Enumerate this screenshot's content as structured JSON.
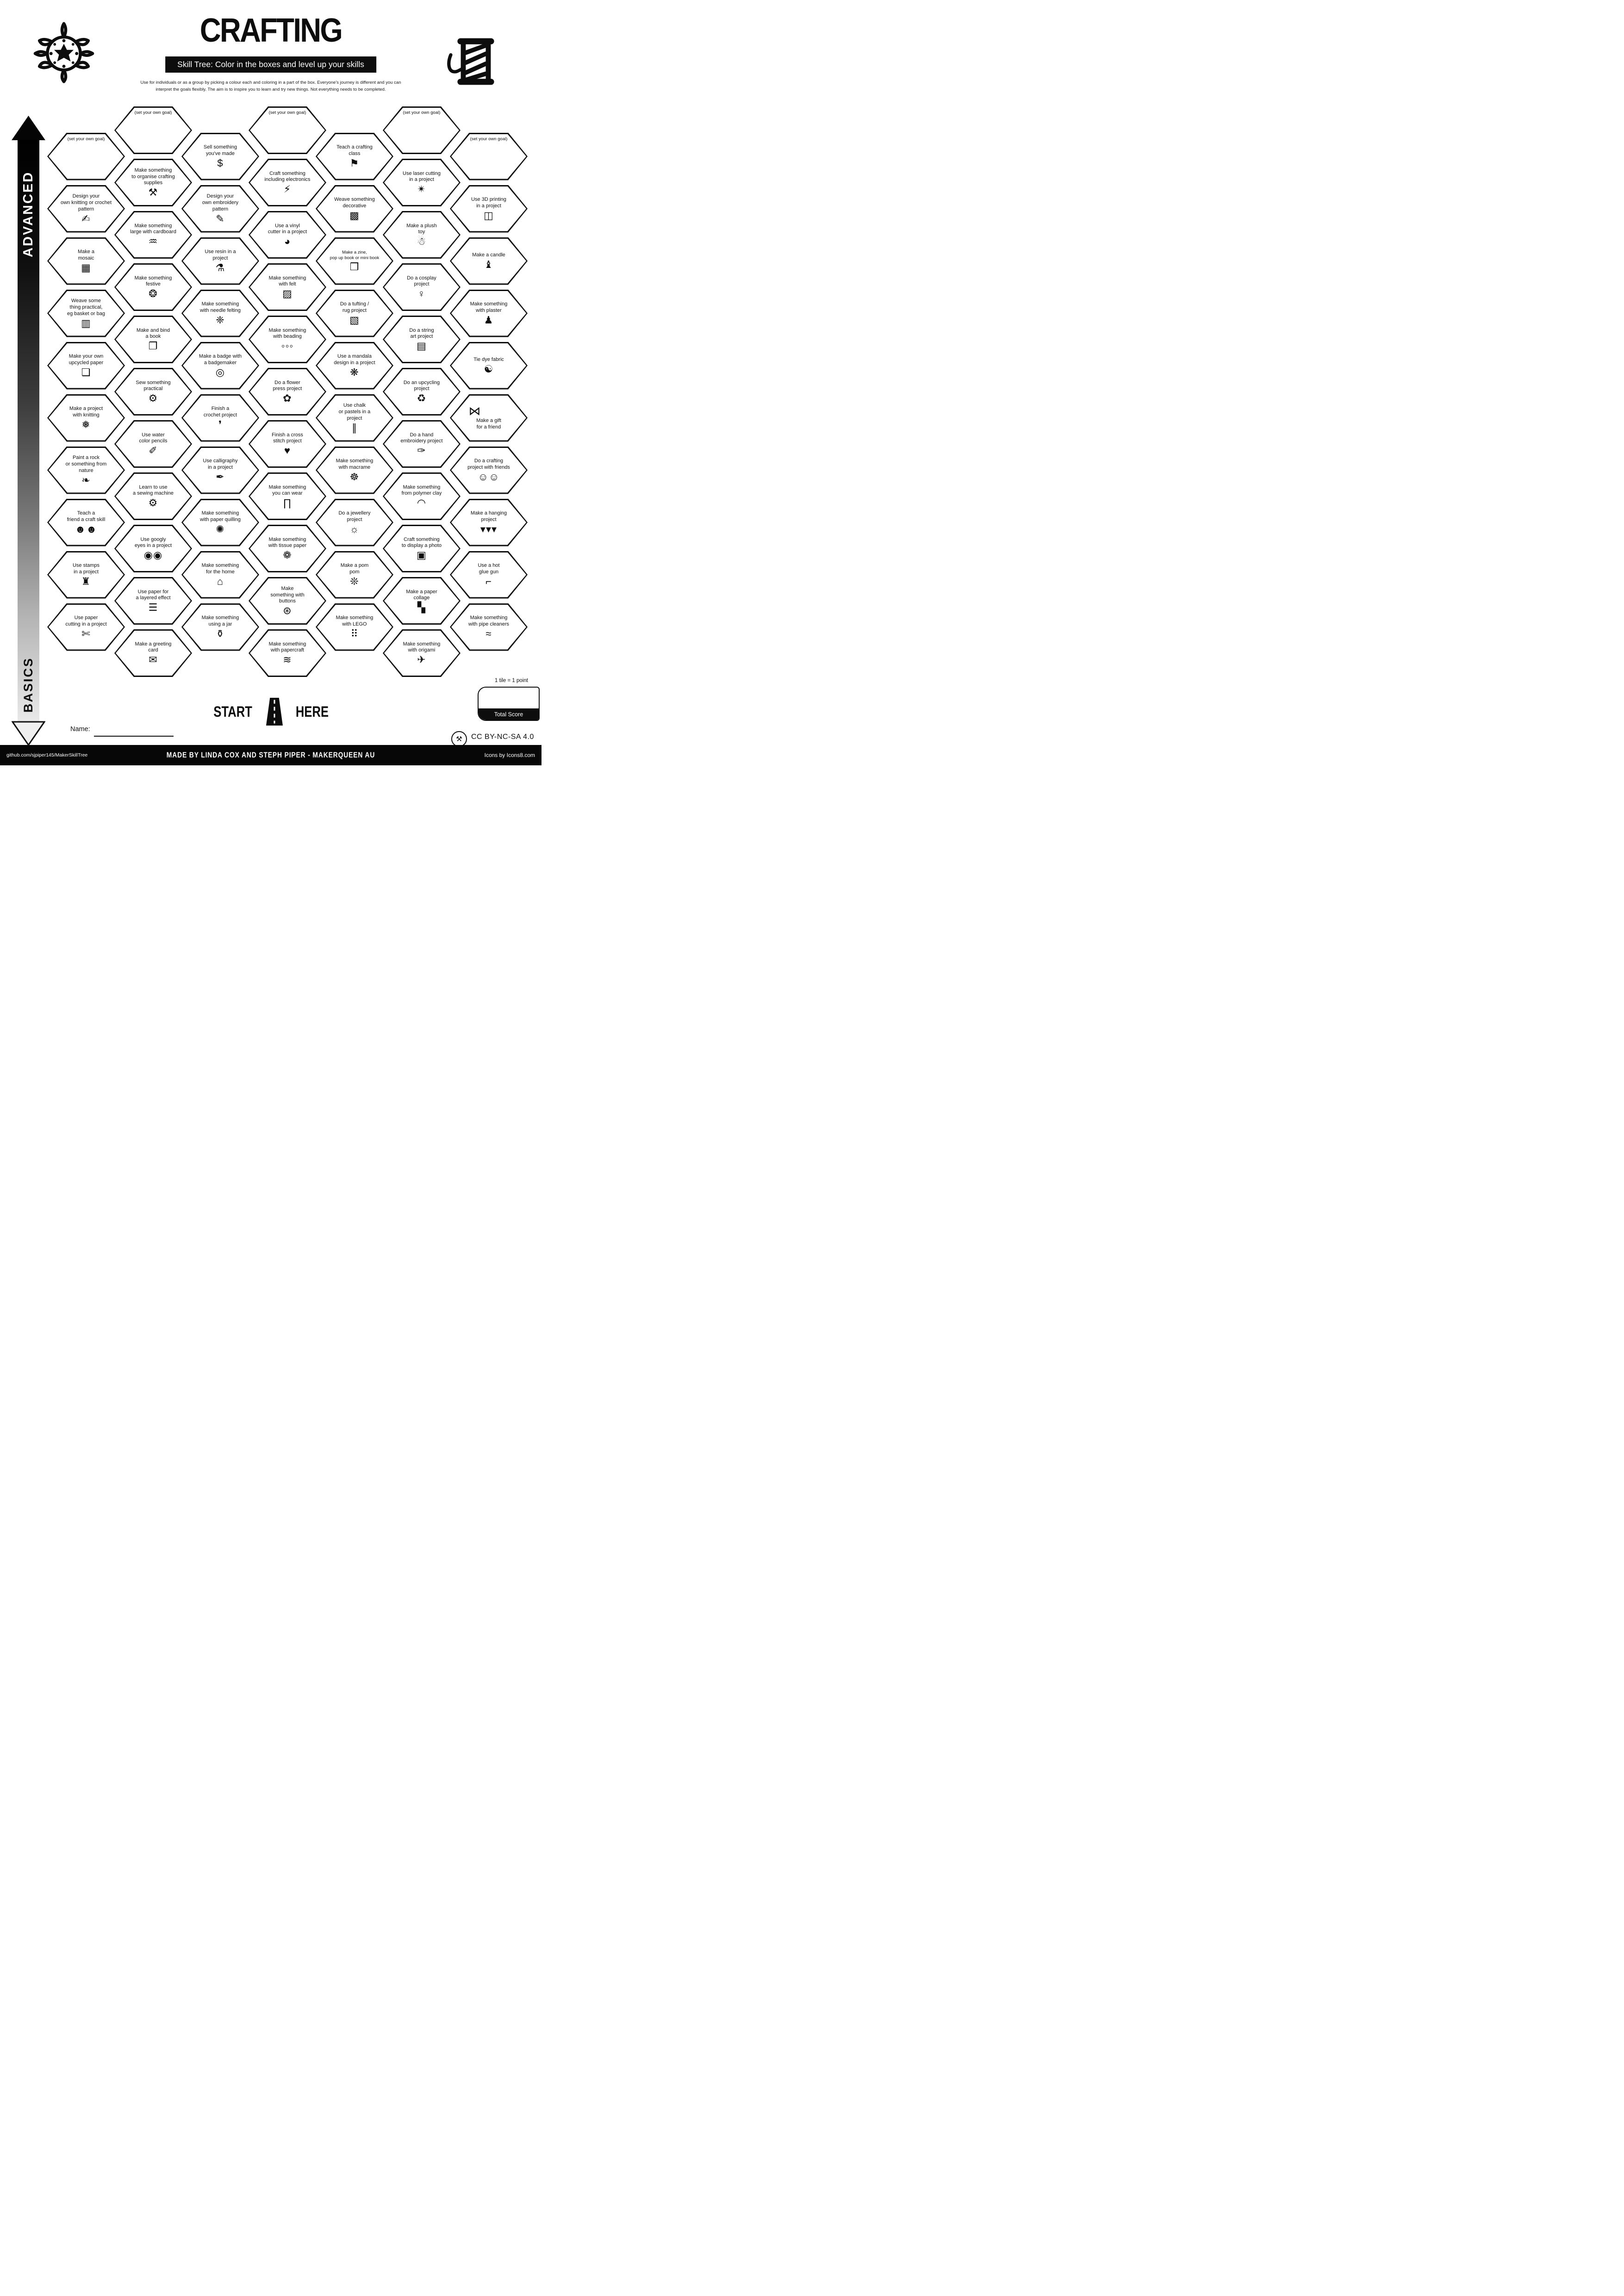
{
  "header": {
    "title": "CRAFTING",
    "subtitle": "Skill Tree:  Color in the boxes and level up your skills",
    "description": "Use for individuals or as a group by picking a colour each and coloring in a part of the box.  Everyone's journey is different and you can\ninterpret the goals flexibly.  The aim is to inspire you to learn and try new things. Not everything needs to be completed.",
    "left_logo_icon": "mandala-logo-icon",
    "right_logo_icon": "thread-spool-logo-icon"
  },
  "axis": {
    "top_label": "ADVANCED",
    "bottom_label": "BASICS"
  },
  "grid": {
    "columns": [
      {
        "hexes": [
          {
            "goal": true,
            "label": "(set your own goal)",
            "glyph": ""
          },
          {
            "label": "Design your\nown knitting or crochet\npattern",
            "icon": "pattern-pencil-icon",
            "glyph": "✍"
          },
          {
            "label": "Make a\nmosaic",
            "icon": "mosaic-icon",
            "glyph": "▦"
          },
          {
            "label": "Weave some\nthing practical,\neg basket or bag",
            "icon": "bag-icon",
            "glyph": "▥"
          },
          {
            "label": "Make your own\nupcycled paper",
            "icon": "paper-scroll-icon",
            "glyph": "❏"
          },
          {
            "label": "Make a project\nwith knitting",
            "icon": "knitting-icon",
            "glyph": "❅"
          },
          {
            "label": "Paint a rock\nor something from\nnature",
            "icon": "leaf-icon",
            "glyph": "❧"
          },
          {
            "label": "Teach a\nfriend a craft skill",
            "icon": "two-friends-icon",
            "glyph": "☻☻"
          },
          {
            "label": "Use stamps\nin a project",
            "icon": "stamp-icon",
            "glyph": "♜"
          },
          {
            "label": "Use paper\ncutting in a project",
            "icon": "cutter-knife-icon",
            "glyph": "✄"
          }
        ]
      },
      {
        "hexes": [
          {
            "goal": true,
            "label": "(set your own goal)",
            "glyph": ""
          },
          {
            "label": "Make something\nto organise crafting\nsupplies",
            "icon": "person-organising-icon",
            "glyph": "⚒"
          },
          {
            "label": "Make something\nlarge with cardboard",
            "icon": "cardboard-icon",
            "glyph": "♒"
          },
          {
            "label": "Make something\nfestive",
            "icon": "bauble-icon",
            "glyph": "❂"
          },
          {
            "label": "Make and bind\na book",
            "icon": "book-icon",
            "glyph": "❐"
          },
          {
            "label": "Sew something\npractical",
            "icon": "sewing-machine-icon",
            "glyph": "⚙"
          },
          {
            "label": "Use water\ncolor pencils",
            "icon": "brush-stroke-icon",
            "glyph": "✐"
          },
          {
            "label": "Learn to use\na sewing machine",
            "icon": "sewing-machine-icon",
            "glyph": "⚙"
          },
          {
            "label": "Use googly\neyes in a project",
            "icon": "googly-eyes-icon",
            "glyph": "◉◉"
          },
          {
            "label": "Use paper for\na layered effect",
            "icon": "layered-paper-icon",
            "glyph": "☰"
          },
          {
            "label": "Make a greeting\ncard",
            "icon": "greeting-card-icon",
            "glyph": "✉"
          }
        ]
      },
      {
        "hexes": [
          {
            "label": "Sell something\nyou've made",
            "icon": "money-bag-icon",
            "glyph": "$"
          },
          {
            "label": "Design your\nown embroidery\npattern",
            "icon": "embroidery-pattern-icon",
            "glyph": "✎"
          },
          {
            "label": "Use resin in a\nproject",
            "icon": "resin-can-icon",
            "glyph": "⚗"
          },
          {
            "label": "Make something\nwith needle felting",
            "icon": "felted-teddy-icon",
            "glyph": "❈"
          },
          {
            "label": "Make a badge with\na badgemaker",
            "icon": "badge-icon",
            "glyph": "◎"
          },
          {
            "label": "Finish a\ncrochet project",
            "icon": "crochet-hook-icon",
            "glyph": "❜"
          },
          {
            "label": "Use calligraphy\nin a project",
            "icon": "calligraphy-pen-icon",
            "glyph": "✒"
          },
          {
            "label": "Make something\nwith paper quilling",
            "icon": "quilling-spiral-icon",
            "glyph": "✺"
          },
          {
            "label": "Make something\nfor the home",
            "icon": "house-icon",
            "glyph": "⌂"
          },
          {
            "label": "Make something\nusing a jar",
            "icon": "jar-icon",
            "glyph": "⚱"
          }
        ]
      },
      {
        "hexes": [
          {
            "goal": true,
            "label": "(set your own goal)",
            "glyph": ""
          },
          {
            "label": "Craft something\nincluding electronics",
            "icon": "led-electronics-icon",
            "glyph": "⚡"
          },
          {
            "label": "Use a vinyl\ncutter in a project",
            "icon": "vinyl-cutter-icon",
            "glyph": "◕"
          },
          {
            "label": "Make something\nwith felt",
            "icon": "felt-sheets-icon",
            "glyph": "▨"
          },
          {
            "label": "Make something\nwith beading",
            "icon": "bead-necklace-icon",
            "glyph": "◦◦◦"
          },
          {
            "label": "Do a flower\npress project",
            "icon": "flower-icon",
            "glyph": "✿"
          },
          {
            "label": "Finish a cross\nstitch project",
            "icon": "cross-stitch-heart-icon",
            "glyph": "♥"
          },
          {
            "label": "Make something\nyou can wear",
            "icon": "pants-icon",
            "glyph": "∏"
          },
          {
            "label": "Make something\nwith tissue paper",
            "icon": "lotus-tissue-icon",
            "glyph": "❁"
          },
          {
            "label": "Make\nsomething with\nbuttons",
            "icon": "button-icon",
            "glyph": "⊛"
          },
          {
            "label": "Make something\nwith papercraft",
            "icon": "papercraft-stack-icon",
            "glyph": "≋"
          }
        ]
      },
      {
        "hexes": [
          {
            "label": "Teach a crafting\nclass",
            "icon": "presenter-icon",
            "glyph": "⚑"
          },
          {
            "label": "Weave something\ndecorative",
            "icon": "woven-square-icon",
            "glyph": "▩"
          },
          {
            "small": true,
            "label": "Make a zine,\npop up book or mini book",
            "icon": "zine-book-icon",
            "glyph": "❒"
          },
          {
            "label": "Do a tufting /\nrug project",
            "icon": "rug-icon",
            "glyph": "▧"
          },
          {
            "label": "Use a mandala\ndesign in a project",
            "icon": "mandala-icon",
            "glyph": "❋"
          },
          {
            "label": "Use chalk\nor pastels in a\nproject",
            "icon": "chalk-sticks-icon",
            "glyph": "∥"
          },
          {
            "label": "Make something\nwith macrame",
            "icon": "dreamcatcher-icon",
            "glyph": "☸"
          },
          {
            "label": "Do a jewellery\nproject",
            "icon": "necklace-rays-icon",
            "glyph": "☼"
          },
          {
            "label": "Make a pom\npom",
            "icon": "pom-pom-icon",
            "glyph": "❊"
          },
          {
            "label": "Make something\nwith LEGO",
            "icon": "lego-brick-icon",
            "glyph": "⠿"
          }
        ]
      },
      {
        "hexes": [
          {
            "goal": true,
            "label": "(set your own goal)",
            "glyph": ""
          },
          {
            "label": "Use laser cutting\nin a project",
            "icon": "laser-beam-icon",
            "glyph": "✴"
          },
          {
            "label": "Make a plush\ntoy",
            "icon": "teddy-bear-icon",
            "glyph": "☃"
          },
          {
            "label": "Do a cosplay\nproject",
            "icon": "dress-form-icon",
            "glyph": "♀"
          },
          {
            "label": "Do a string\nart project",
            "icon": "thread-spool-icon",
            "glyph": "▤"
          },
          {
            "label": "Do an upcycling\nproject",
            "icon": "recycle-icon",
            "glyph": "♻"
          },
          {
            "label": "Do a hand\nembroidery project",
            "icon": "needle-icon",
            "glyph": "✑"
          },
          {
            "label": "Make something\nfrom polymer clay",
            "icon": "rainbow-icon",
            "glyph": "◠"
          },
          {
            "label": "Craft something\nto display a photo",
            "icon": "photo-frame-icon",
            "glyph": "▣"
          },
          {
            "label": "Make a paper\ncollage",
            "icon": "collage-icon",
            "glyph": "▚"
          },
          {
            "label": "Make something\nwith origami",
            "icon": "origami-crane-icon",
            "glyph": "✈"
          }
        ]
      },
      {
        "hexes": [
          {
            "goal": true,
            "label": "(set your own goal)",
            "glyph": ""
          },
          {
            "label": "Use 3D printing\nin a project",
            "icon": "printer-3d-icon",
            "glyph": "◫"
          },
          {
            "label": "Make a candle",
            "icon": "candle-icon",
            "glyph": "♝"
          },
          {
            "label": "Make something\nwith plaster",
            "icon": "plaster-bust-icon",
            "glyph": "♟"
          },
          {
            "label": "Tie dye fabric",
            "icon": "tie-dye-swirl-icon",
            "glyph": "☯"
          },
          {
            "icon_above": true,
            "label": "Make a gift\nfor a friend",
            "icon": "gift-bow-icon",
            "glyph": "⋈"
          },
          {
            "label": "Do a crafting\nproject with friends",
            "icon": "friends-crafting-icon",
            "glyph": "☺☺"
          },
          {
            "label": "Make a hanging\nproject",
            "icon": "bunting-icon",
            "glyph": "▾▾▾"
          },
          {
            "label": "Use a hot\nglue gun",
            "icon": "glue-gun-icon",
            "glyph": "⌐"
          },
          {
            "label": "Make something\nwith pipe cleaners",
            "icon": "pipe-cleaner-icon",
            "glyph": "≈"
          }
        ]
      }
    ]
  },
  "start": {
    "start_label": "START",
    "here_label": "HERE",
    "road_icon": "road-icon"
  },
  "name_label": "Name:",
  "scoring": {
    "tile_note": "1 tile = 1 point",
    "total_label": "Total Score"
  },
  "license": {
    "text": "CC BY-NC-SA 4.0",
    "badge_icon": "crossed-tools-badge-icon",
    "badge_glyph": "⚒"
  },
  "footer": {
    "left": "github.com/sjpiper145/MakerSkillTree",
    "center": "MADE BY LINDA COX  AND STEPH PIPER  -  MAKERQUEEN AU",
    "right": "Icons by Icons8.com"
  },
  "colors": {
    "ink": "#0d0d0d",
    "paper": "#ffffff"
  }
}
